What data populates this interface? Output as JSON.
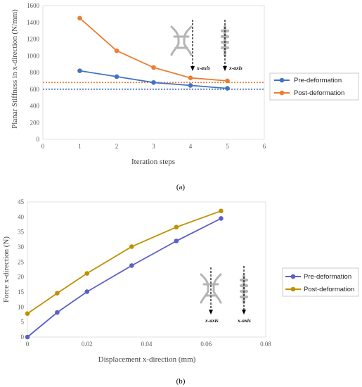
{
  "chart_data": [
    {
      "type": "line",
      "ylabel": "Planar Stiffness in x-direction (N/mm)",
      "xlabel": "Iteration steps",
      "xlim": [
        0,
        6
      ],
      "ylim": [
        0,
        1600
      ],
      "x_ticks": [
        0,
        1,
        2,
        3,
        4,
        5,
        6
      ],
      "y_ticks": [
        0,
        200,
        400,
        600,
        800,
        1000,
        1200,
        1400,
        1600
      ],
      "grid": false,
      "legend_position": "right",
      "series": [
        {
          "name": "Pre-deformation",
          "color": "#4472c4",
          "x": [
            1,
            2,
            3,
            4,
            5
          ],
          "y": [
            820,
            750,
            680,
            645,
            610
          ]
        },
        {
          "name": "Post-deformation",
          "color": "#ed7d31",
          "x": [
            1,
            2,
            3,
            4,
            5
          ],
          "y": [
            1450,
            1060,
            860,
            735,
            700
          ]
        }
      ],
      "reference_lines": [
        {
          "color": "#ed7d31",
          "y": 680
        },
        {
          "color": "#4472c4",
          "y": 600
        }
      ],
      "inset_labels": [
        "x-axis",
        "x-axis"
      ],
      "caption": "(a)"
    },
    {
      "type": "line",
      "ylabel": "Force x-direction (N)",
      "xlabel": "Displacement x-direction (mm)",
      "xlim": [
        0,
        0.08
      ],
      "ylim": [
        0,
        45
      ],
      "x_ticks": [
        0,
        0.02,
        0.04,
        0.06,
        0.08
      ],
      "y_ticks": [
        0,
        5,
        10,
        15,
        20,
        25,
        30,
        35,
        40,
        45
      ],
      "grid": false,
      "legend_position": "right",
      "series": [
        {
          "name": "Pre-deformation",
          "color": "#5b5fc7",
          "x": [
            0,
            0.01,
            0.02,
            0.035,
            0.05,
            0.065
          ],
          "y": [
            0,
            8.2,
            15.1,
            23.8,
            32,
            39.5
          ]
        },
        {
          "name": "Post-deformation",
          "color": "#bf9000",
          "x": [
            0,
            0.01,
            0.02,
            0.035,
            0.05,
            0.065
          ],
          "y": [
            7.8,
            14.6,
            21.2,
            30.1,
            36.6,
            42
          ]
        }
      ],
      "inset_labels": [
        "x-axis",
        "x-axis"
      ],
      "caption": "(b)"
    }
  ]
}
